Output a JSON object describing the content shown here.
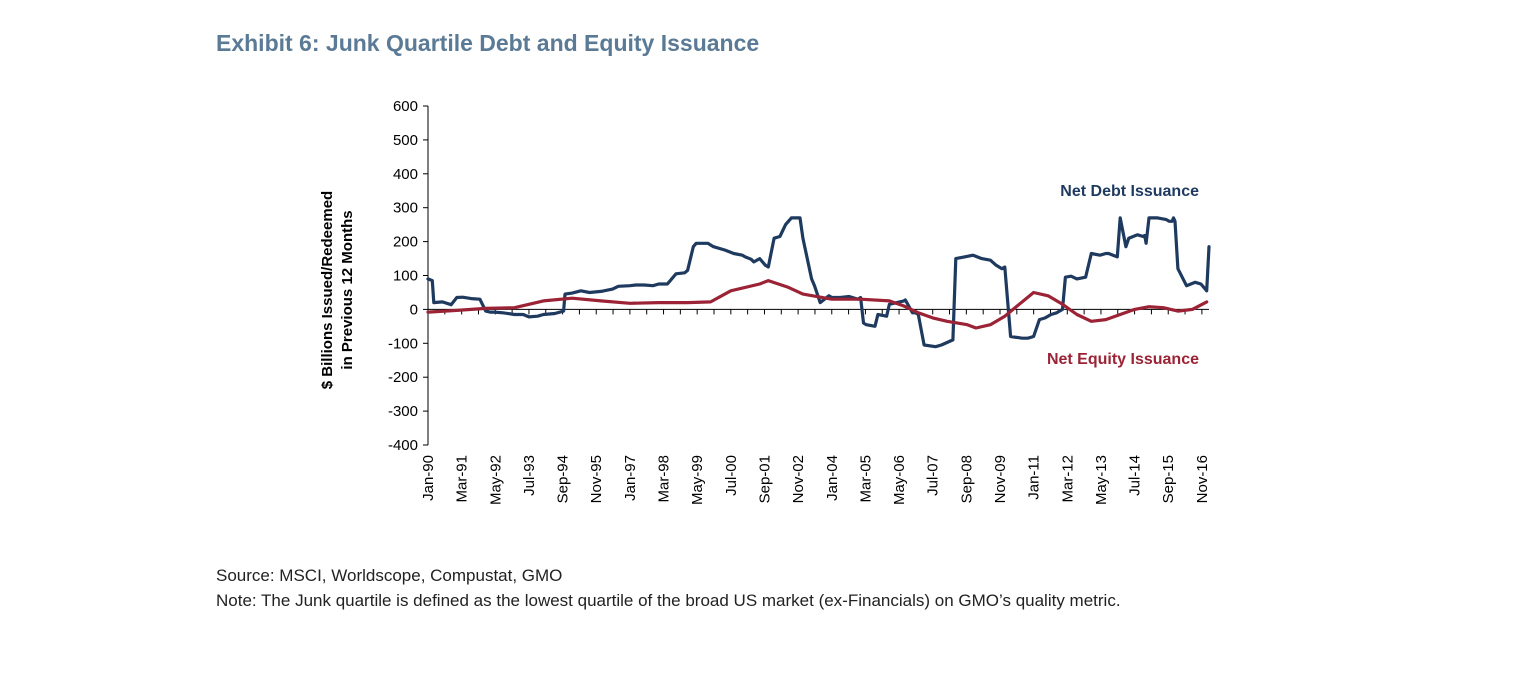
{
  "title": "Exhibit 6: Junk Quartile Debt and Equity Issuance",
  "source": "Source: MSCI, Worldscope, Compustat, GMO",
  "note": "Note: The Junk quartile is defined as the lowest quartile of the broad US market (ex-Financials) on GMO’s quality metric.",
  "colors": {
    "debt": "#1f3a5f",
    "equity": "#9b2335",
    "title": "#5b7a95"
  },
  "chart_data": {
    "type": "line",
    "title": "Exhibit 6: Junk Quartile Debt and Equity Issuance",
    "ylabel_line1": "$ Billions Issued/Redeemed",
    "ylabel_line2": "in Previous 12 Months",
    "xlabel": "",
    "ylim": [
      -400,
      600
    ],
    "yticks": [
      600,
      500,
      400,
      300,
      200,
      100,
      0,
      -100,
      -200,
      -300,
      -400
    ],
    "xlim": [
      1990.0,
      2017.08
    ],
    "xtick_labels": [
      "Jan-90",
      "Mar-91",
      "May-92",
      "Jul-93",
      "Sep-94",
      "Nov-95",
      "Jan-97",
      "Mar-98",
      "May-99",
      "Jul-00",
      "Sep-01",
      "Nov-02",
      "Jan-04",
      "Mar-05",
      "May-06",
      "Jul-07",
      "Sep-08",
      "Nov-09",
      "Jan-11",
      "Mar-12",
      "May-13",
      "Jul-14",
      "Sep-15",
      "Nov-16"
    ],
    "grid": false,
    "legend": "inline-labels",
    "series": [
      {
        "name": "Net Debt Issuance",
        "x": [
          1990.0,
          1990.15,
          1990.2,
          1990.5,
          1990.8,
          1991.0,
          1991.2,
          1991.5,
          1991.8,
          1992.0,
          1992.15,
          1992.3,
          1992.6,
          1993.0,
          1993.3,
          1993.5,
          1993.8,
          1994.0,
          1994.4,
          1994.7,
          1994.75,
          1995.0,
          1995.3,
          1995.6,
          1996.0,
          1996.4,
          1996.6,
          1997.0,
          1997.2,
          1997.5,
          1997.8,
          1998.0,
          1998.3,
          1998.6,
          1998.9,
          1999.0,
          1999.2,
          1999.3,
          1999.7,
          1999.9,
          2000.3,
          2000.6,
          2000.9,
          2001.0,
          2001.2,
          2001.3,
          2001.5,
          2001.7,
          2001.8,
          2002.0,
          2002.2,
          2002.4,
          2002.6,
          2002.9,
          2003.0,
          2003.3,
          2003.4,
          2003.6,
          2003.9,
          2004.0,
          2004.3,
          2004.6,
          2004.9,
          2005.0,
          2005.1,
          2005.2,
          2005.5,
          2005.6,
          2005.9,
          2006.0,
          2006.5,
          2006.55,
          2006.8,
          2006.9,
          2007.0,
          2007.2,
          2007.6,
          2007.8,
          2008.2,
          2008.3,
          2008.6,
          2008.9,
          2009.2,
          2009.5,
          2009.7,
          2009.9,
          2010.0,
          2010.2,
          2010.6,
          2010.8,
          2011.0,
          2011.2,
          2011.4,
          2011.6,
          2011.8,
          2012.0,
          2012.1,
          2012.3,
          2012.5,
          2012.8,
          2013.0,
          2013.3,
          2013.5,
          2013.6,
          2013.9,
          2014.0,
          2014.2,
          2014.3,
          2014.6,
          2014.8,
          2014.85,
          2014.9,
          2015.0,
          2015.3,
          2015.6,
          2015.7,
          2015.8,
          2015.85,
          2015.9,
          2016.0,
          2016.3,
          2016.6,
          2016.8,
          2016.95,
          2017.0,
          2017.08
        ],
        "values": [
          90,
          85,
          20,
          22,
          14,
          35,
          36,
          32,
          30,
          -5,
          -8,
          -8,
          -10,
          -15,
          -15,
          -22,
          -20,
          -15,
          -12,
          -5,
          45,
          48,
          55,
          50,
          53,
          60,
          68,
          70,
          72,
          72,
          70,
          75,
          75,
          105,
          108,
          115,
          185,
          195,
          195,
          185,
          175,
          165,
          160,
          155,
          148,
          140,
          150,
          130,
          125,
          210,
          215,
          250,
          270,
          270,
          210,
          90,
          70,
          20,
          40,
          35,
          35,
          38,
          30,
          35,
          -40,
          -45,
          -50,
          -15,
          -20,
          15,
          25,
          28,
          -10,
          -10,
          -15,
          -105,
          -110,
          -105,
          -90,
          150,
          155,
          160,
          150,
          145,
          130,
          120,
          125,
          -80,
          -85,
          -85,
          -80,
          -30,
          -25,
          -15,
          -10,
          0,
          95,
          98,
          90,
          95,
          165,
          160,
          165,
          165,
          155,
          270,
          185,
          210,
          220,
          215,
          218,
          195,
          270,
          270,
          265,
          260,
          260,
          270,
          260,
          120,
          70,
          80,
          75,
          60,
          55,
          185
        ]
      },
      {
        "name": "Net Equity Issuance",
        "x": [
          1990.0,
          1991.0,
          1992.0,
          1993.0,
          1994.0,
          1995.0,
          1996.0,
          1997.0,
          1998.0,
          1999.0,
          1999.8,
          2000.5,
          2001.5,
          2001.8,
          2002.5,
          2003.0,
          2004.0,
          2005.0,
          2006.0,
          2006.5,
          2007.0,
          2007.5,
          2008.0,
          2008.7,
          2009.0,
          2009.5,
          2010.0,
          2010.5,
          2011.0,
          2011.5,
          2012.0,
          2012.5,
          2013.0,
          2013.5,
          2014.0,
          2014.5,
          2015.0,
          2015.5,
          2016.0,
          2016.5,
          2017.0
        ],
        "values": [
          -8,
          -3,
          3,
          5,
          25,
          33,
          25,
          18,
          20,
          20,
          22,
          55,
          75,
          85,
          65,
          45,
          30,
          30,
          25,
          10,
          -10,
          -25,
          -35,
          -45,
          -55,
          -45,
          -20,
          15,
          50,
          40,
          15,
          -15,
          -35,
          -30,
          -15,
          0,
          8,
          5,
          -5,
          0,
          22
        ]
      }
    ],
    "annotations": [
      {
        "text": "Net Debt Issuance",
        "series": "Net Debt Issuance"
      },
      {
        "text": "Net Equity Issuance",
        "series": "Net Equity Issuance"
      }
    ]
  }
}
